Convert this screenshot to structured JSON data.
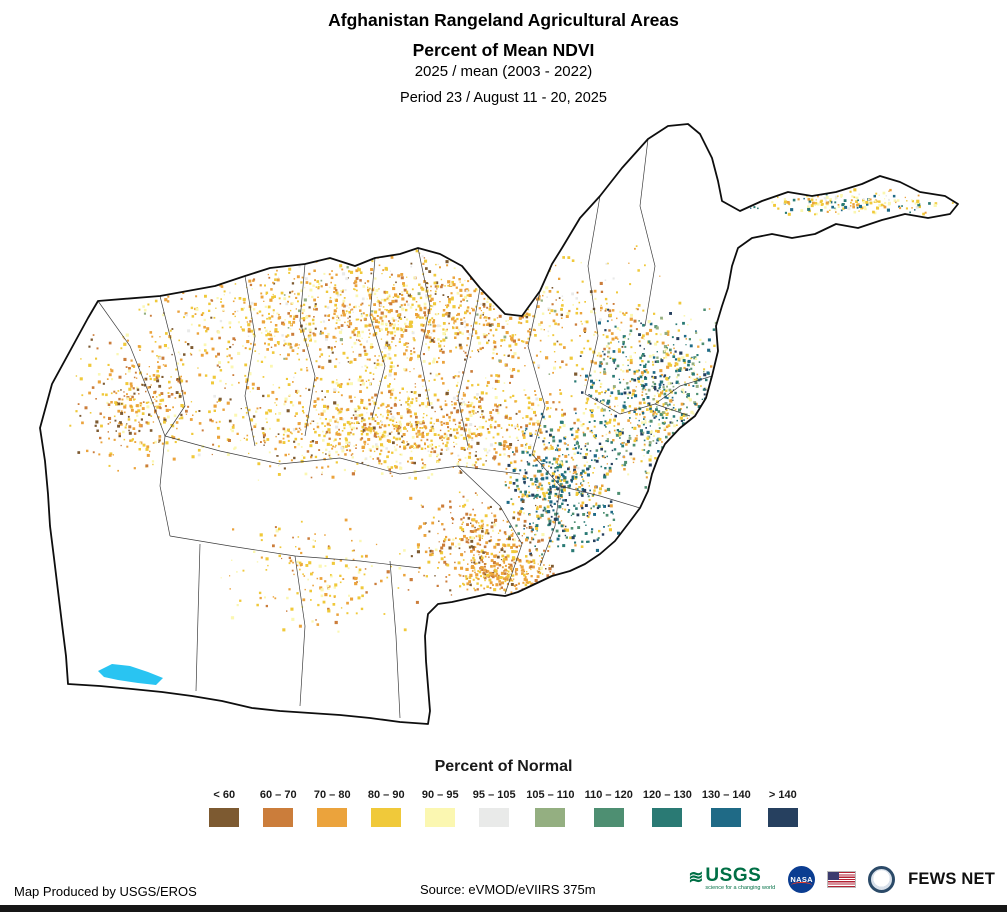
{
  "header": {
    "title": "Afghanistan Rangeland Agricultural Areas",
    "subtitle": "Percent of Mean NDVI",
    "ratio_line": "2025 / mean (2003 - 2022)",
    "period_line": "Period 23 / August 11 - 20, 2025"
  },
  "legend": {
    "title": "Percent of Normal",
    "classes": [
      {
        "label": "< 60",
        "color": "#7D5A31"
      },
      {
        "label": "60 – 70",
        "color": "#CB7D3B"
      },
      {
        "label": "70 – 80",
        "color": "#EBA33C"
      },
      {
        "label": "80 – 90",
        "color": "#F0C93A"
      },
      {
        "label": "90 – 95",
        "color": "#FBF7B1"
      },
      {
        "label": "95 – 105",
        "color": "#E9EAE9"
      },
      {
        "label": "105 – 110",
        "color": "#94AF81"
      },
      {
        "label": "110 – 120",
        "color": "#4E8F72"
      },
      {
        "label": "120 – 130",
        "color": "#2A7A74"
      },
      {
        "label": "130 – 140",
        "color": "#1F6A86"
      },
      {
        "label": "> 140",
        "color": "#26405F"
      }
    ]
  },
  "map": {
    "region": "Afghanistan",
    "lake_color": "#29C4F2",
    "no_data_color": "#FFFFFF",
    "border_color": "#0E0E0E"
  },
  "footer": {
    "credit": "Map Produced by USGS/EROS",
    "source": "Source: eVMOD/eVIIRS 375m",
    "logos": {
      "usgs": "USGS",
      "usgs_tagline": "science for a changing world",
      "nasa": "NASA",
      "fews_net": "FEWS NET",
      "flag_icon": "us-flag-icon",
      "seal_icon": "state-department-seal-icon"
    }
  }
}
